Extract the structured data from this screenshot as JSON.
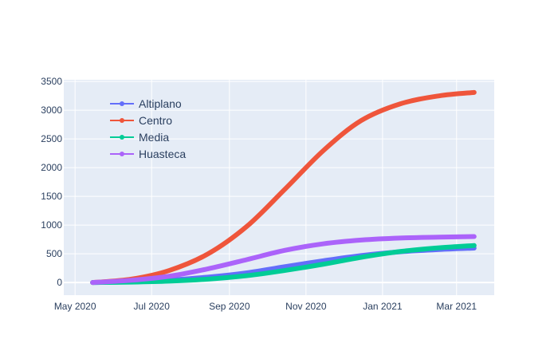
{
  "chart_data": {
    "type": "line",
    "title": "",
    "xlabel": "",
    "ylabel": "",
    "x_type": "date",
    "xlim": [
      "2020-04-22",
      "2021-03-31"
    ],
    "ylim": [
      -220,
      3530
    ],
    "grid": true,
    "legend_position": "top-left",
    "plot_background": "#e5ecf6",
    "x_ticks": [
      {
        "value": "2020-05-01",
        "label": "May 2020"
      },
      {
        "value": "2020-07-01",
        "label": "Jul 2020"
      },
      {
        "value": "2020-09-01",
        "label": "Sep 2020"
      },
      {
        "value": "2020-11-01",
        "label": "Nov 2020"
      },
      {
        "value": "2021-01-01",
        "label": "Jan 2021"
      },
      {
        "value": "2021-03-01",
        "label": "Mar 2021"
      }
    ],
    "y_ticks": [
      0,
      500,
      1000,
      1500,
      2000,
      2500,
      3000,
      3500
    ],
    "series": [
      {
        "name": "Altiplano",
        "color": "#636efa",
        "points": [
          {
            "x": "2020-05-15",
            "y": 0
          },
          {
            "x": "2020-06-15",
            "y": 15
          },
          {
            "x": "2020-07-15",
            "y": 45
          },
          {
            "x": "2020-08-15",
            "y": 95
          },
          {
            "x": "2020-09-15",
            "y": 170
          },
          {
            "x": "2020-10-15",
            "y": 275
          },
          {
            "x": "2020-11-15",
            "y": 380
          },
          {
            "x": "2020-12-15",
            "y": 470
          },
          {
            "x": "2021-01-15",
            "y": 535
          },
          {
            "x": "2021-02-15",
            "y": 575
          },
          {
            "x": "2021-03-15",
            "y": 600
          }
        ]
      },
      {
        "name": "Centro",
        "color": "#ef553b",
        "points": [
          {
            "x": "2020-05-15",
            "y": 0
          },
          {
            "x": "2020-06-15",
            "y": 60
          },
          {
            "x": "2020-07-15",
            "y": 210
          },
          {
            "x": "2020-08-15",
            "y": 500
          },
          {
            "x": "2020-09-15",
            "y": 980
          },
          {
            "x": "2020-10-15",
            "y": 1620
          },
          {
            "x": "2020-11-15",
            "y": 2300
          },
          {
            "x": "2020-12-15",
            "y": 2820
          },
          {
            "x": "2021-01-15",
            "y": 3110
          },
          {
            "x": "2021-02-15",
            "y": 3250
          },
          {
            "x": "2021-03-15",
            "y": 3310
          }
        ]
      },
      {
        "name": "Media",
        "color": "#00cc96",
        "points": [
          {
            "x": "2020-05-15",
            "y": 0
          },
          {
            "x": "2020-06-15",
            "y": 8
          },
          {
            "x": "2020-07-15",
            "y": 25
          },
          {
            "x": "2020-08-15",
            "y": 60
          },
          {
            "x": "2020-09-15",
            "y": 120
          },
          {
            "x": "2020-10-15",
            "y": 210
          },
          {
            "x": "2020-11-15",
            "y": 320
          },
          {
            "x": "2020-12-15",
            "y": 440
          },
          {
            "x": "2021-01-15",
            "y": 540
          },
          {
            "x": "2021-02-15",
            "y": 605
          },
          {
            "x": "2021-03-15",
            "y": 645
          }
        ]
      },
      {
        "name": "Huasteca",
        "color": "#ab63fa",
        "points": [
          {
            "x": "2020-05-15",
            "y": 0
          },
          {
            "x": "2020-06-15",
            "y": 40
          },
          {
            "x": "2020-07-15",
            "y": 110
          },
          {
            "x": "2020-08-15",
            "y": 240
          },
          {
            "x": "2020-09-15",
            "y": 400
          },
          {
            "x": "2020-10-15",
            "y": 560
          },
          {
            "x": "2020-11-15",
            "y": 675
          },
          {
            "x": "2020-12-15",
            "y": 740
          },
          {
            "x": "2021-01-15",
            "y": 775
          },
          {
            "x": "2021-02-15",
            "y": 790
          },
          {
            "x": "2021-03-15",
            "y": 800
          }
        ]
      }
    ]
  }
}
